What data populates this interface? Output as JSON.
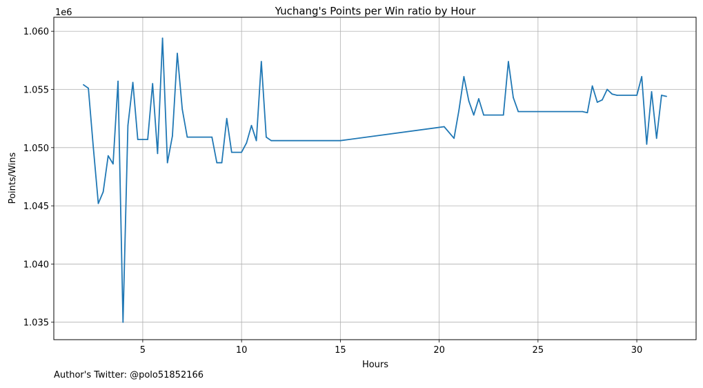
{
  "chart_data": {
    "type": "line",
    "title": "Yuchang's Points per Win ratio by Hour",
    "xlabel": "Hours",
    "ylabel": "Points/Wins",
    "y_offset_label": "1e6",
    "xlim": [
      0.5,
      33
    ],
    "ylim": [
      1.0335,
      1.0612
    ],
    "x_ticks": [
      5,
      10,
      15,
      20,
      25,
      30
    ],
    "y_ticks": [
      1.035,
      1.04,
      1.045,
      1.05,
      1.055,
      1.06
    ],
    "y_tick_labels": [
      "1.035",
      "1.040",
      "1.045",
      "1.050",
      "1.055",
      "1.060"
    ],
    "grid": true,
    "series": [
      {
        "color": "#1f77b4",
        "points": [
          [
            2.0,
            1.0554
          ],
          [
            2.25,
            1.0551
          ],
          [
            2.5,
            1.05
          ],
          [
            2.75,
            1.0452
          ],
          [
            3.0,
            1.0462
          ],
          [
            3.25,
            1.0493
          ],
          [
            3.5,
            1.0486
          ],
          [
            3.75,
            1.0557
          ],
          [
            4.0,
            1.035
          ],
          [
            4.25,
            1.0519
          ],
          [
            4.5,
            1.0556
          ],
          [
            4.75,
            1.0507
          ],
          [
            5.0,
            1.0507
          ],
          [
            5.25,
            1.0507
          ],
          [
            5.5,
            1.0555
          ],
          [
            5.75,
            1.0495
          ],
          [
            6.0,
            1.0594
          ],
          [
            6.25,
            1.0487
          ],
          [
            6.5,
            1.051
          ],
          [
            6.75,
            1.0581
          ],
          [
            7.0,
            1.0533
          ],
          [
            7.25,
            1.0509
          ],
          [
            8.5,
            1.0509
          ],
          [
            8.75,
            1.0487
          ],
          [
            9.0,
            1.0487
          ],
          [
            9.25,
            1.0525
          ],
          [
            9.5,
            1.0496
          ],
          [
            10.0,
            1.0496
          ],
          [
            10.25,
            1.0504
          ],
          [
            10.5,
            1.0519
          ],
          [
            10.75,
            1.0506
          ],
          [
            11.0,
            1.0574
          ],
          [
            11.25,
            1.0509
          ],
          [
            11.5,
            1.0506
          ],
          [
            15.0,
            1.0506
          ],
          [
            20.25,
            1.0518
          ],
          [
            20.75,
            1.0508
          ],
          [
            21.0,
            1.0532
          ],
          [
            21.25,
            1.0561
          ],
          [
            21.5,
            1.054
          ],
          [
            21.75,
            1.0528
          ],
          [
            22.0,
            1.0542
          ],
          [
            22.25,
            1.0528
          ],
          [
            23.25,
            1.0528
          ],
          [
            23.5,
            1.0574
          ],
          [
            23.75,
            1.0543
          ],
          [
            24.0,
            1.0531
          ],
          [
            27.25,
            1.0531
          ],
          [
            27.5,
            1.053
          ],
          [
            27.75,
            1.0553
          ],
          [
            28.0,
            1.0539
          ],
          [
            28.25,
            1.0541
          ],
          [
            28.5,
            1.055
          ],
          [
            28.75,
            1.0546
          ],
          [
            29.0,
            1.0545
          ],
          [
            30.0,
            1.0545
          ],
          [
            30.25,
            1.0561
          ],
          [
            30.5,
            1.0503
          ],
          [
            30.75,
            1.0548
          ],
          [
            31.0,
            1.0508
          ],
          [
            31.25,
            1.0545
          ],
          [
            31.5,
            1.0544
          ]
        ]
      }
    ]
  },
  "footer": {
    "author_note": "Author's Twitter: @polo51852166"
  }
}
